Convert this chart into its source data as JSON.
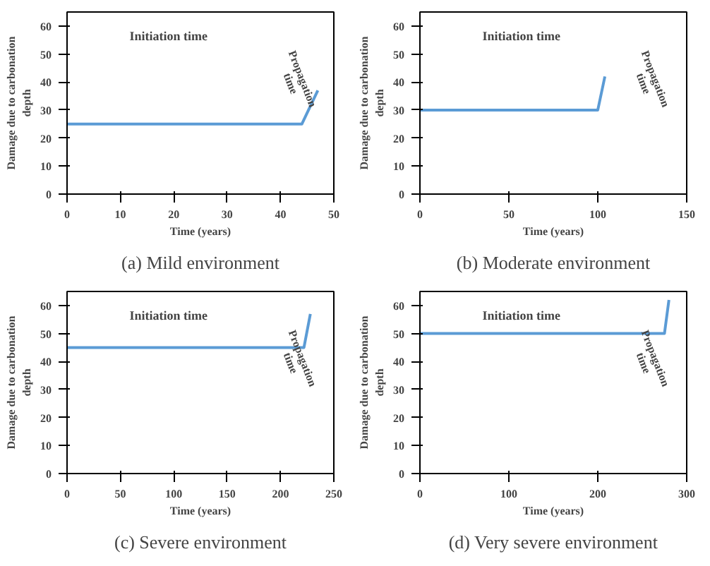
{
  "chart_data": [
    {
      "type": "line",
      "title": "(a) Mild environment",
      "xlabel": "Time (years)",
      "ylabel": "Damage due to carbonation\ndepth",
      "x": [
        0,
        44,
        47
      ],
      "series": [
        {
          "color": "#5b9bd5",
          "values": [
            25,
            25,
            37
          ]
        }
      ],
      "xlim": [
        0,
        50
      ],
      "xticks": [
        0,
        10,
        20,
        30,
        40,
        50
      ],
      "ylim": [
        0,
        65
      ],
      "yticks": [
        0,
        10,
        20,
        30,
        40,
        50,
        60
      ],
      "grid": false,
      "annotations": [
        "Initiation time",
        "Propagation time"
      ]
    },
    {
      "type": "line",
      "title": "(b) Moderate environment",
      "xlabel": "Time (years)",
      "ylabel": "Damage due to carbonation\ndepth",
      "x": [
        0,
        100,
        104
      ],
      "series": [
        {
          "color": "#5b9bd5",
          "values": [
            30,
            30,
            42
          ]
        }
      ],
      "xlim": [
        0,
        150
      ],
      "xticks": [
        0,
        50,
        100,
        150
      ],
      "ylim": [
        0,
        65
      ],
      "yticks": [
        0,
        10,
        20,
        30,
        40,
        50,
        60
      ],
      "grid": false,
      "annotations": [
        "Initiation time",
        "Propagation time"
      ]
    },
    {
      "type": "line",
      "title": "(c) Severe environment",
      "xlabel": "Time (years)",
      "ylabel": "Damage due to carbonation\ndepth",
      "x": [
        0,
        222,
        228
      ],
      "series": [
        {
          "color": "#5b9bd5",
          "values": [
            45,
            45,
            57
          ]
        }
      ],
      "xlim": [
        0,
        250
      ],
      "xticks": [
        0,
        50,
        100,
        150,
        200,
        250
      ],
      "ylim": [
        0,
        65
      ],
      "yticks": [
        0,
        10,
        20,
        30,
        40,
        50,
        60
      ],
      "grid": false,
      "annotations": [
        "Initiation time",
        "Propagation time"
      ]
    },
    {
      "type": "line",
      "title": "(d) Very severe environment",
      "xlabel": "Time (years)",
      "ylabel": "Damage due to carbonation\ndepth",
      "x": [
        0,
        275,
        280
      ],
      "series": [
        {
          "color": "#5b9bd5",
          "values": [
            50,
            50,
            62
          ]
        }
      ],
      "xlim": [
        0,
        300
      ],
      "xticks": [
        0,
        100,
        200,
        300
      ],
      "ylim": [
        0,
        65
      ],
      "yticks": [
        0,
        10,
        20,
        30,
        40,
        50,
        60
      ],
      "grid": false,
      "annotations": [
        "Initiation time",
        "Propagation time"
      ]
    }
  ]
}
